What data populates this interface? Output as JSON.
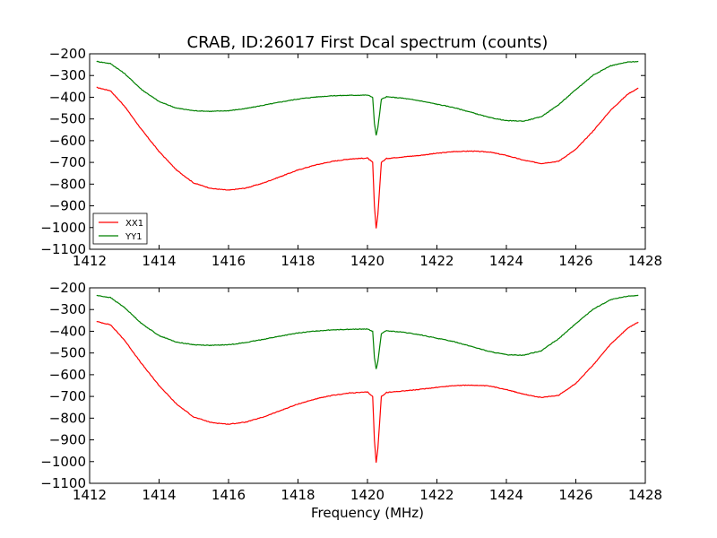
{
  "title": "CRAB, ID:26017 First Dcal spectrum (counts)",
  "xlabel": "Frequency (MHz)",
  "chart_data": [
    {
      "type": "line",
      "title": "CRAB, ID:26017 First Dcal spectrum (counts)",
      "xlabel": "",
      "ylabel": "",
      "xlim": [
        1412,
        1428
      ],
      "ylim": [
        -1100,
        -200
      ],
      "xticks": [
        1412,
        1414,
        1416,
        1418,
        1420,
        1422,
        1424,
        1426,
        1428
      ],
      "yticks": [
        -200,
        -300,
        -400,
        -500,
        -600,
        -700,
        -800,
        -900,
        -1000,
        -1100
      ],
      "grid": false,
      "legend": "lower-left",
      "series": [
        {
          "name": "XX1",
          "color": "#ff0000",
          "x": [
            1412.2,
            1412.6,
            1413.0,
            1413.5,
            1414.0,
            1414.5,
            1415.0,
            1415.5,
            1416.0,
            1416.5,
            1417.0,
            1417.5,
            1418.0,
            1418.5,
            1419.0,
            1419.5,
            1420.0,
            1420.15,
            1420.2,
            1420.25,
            1420.3,
            1420.4,
            1420.55,
            1421.0,
            1421.5,
            1422.0,
            1422.5,
            1423.0,
            1423.5,
            1424.0,
            1424.5,
            1425.0,
            1425.5,
            1426.0,
            1426.5,
            1427.0,
            1427.5,
            1427.8
          ],
          "y": [
            -355,
            -370,
            -440,
            -550,
            -650,
            -735,
            -795,
            -820,
            -828,
            -818,
            -795,
            -765,
            -735,
            -712,
            -695,
            -684,
            -680,
            -700,
            -900,
            -1005,
            -940,
            -700,
            -682,
            -675,
            -668,
            -658,
            -650,
            -648,
            -652,
            -668,
            -690,
            -705,
            -695,
            -640,
            -555,
            -460,
            -385,
            -358
          ]
        },
        {
          "name": "YY1",
          "color": "#008000",
          "x": [
            1412.2,
            1412.6,
            1413.0,
            1413.5,
            1414.0,
            1414.5,
            1415.0,
            1415.5,
            1416.0,
            1416.5,
            1417.0,
            1417.5,
            1418.0,
            1418.5,
            1419.0,
            1419.5,
            1420.0,
            1420.15,
            1420.2,
            1420.25,
            1420.3,
            1420.4,
            1420.55,
            1421.0,
            1421.5,
            1422.0,
            1422.5,
            1423.0,
            1423.5,
            1424.0,
            1424.5,
            1425.0,
            1425.5,
            1426.0,
            1426.5,
            1427.0,
            1427.5,
            1427.8
          ],
          "y": [
            -235,
            -245,
            -290,
            -365,
            -420,
            -450,
            -462,
            -465,
            -462,
            -452,
            -437,
            -422,
            -408,
            -399,
            -393,
            -391,
            -390,
            -400,
            -520,
            -575,
            -540,
            -410,
            -398,
            -404,
            -416,
            -432,
            -448,
            -470,
            -493,
            -508,
            -510,
            -490,
            -435,
            -365,
            -298,
            -255,
            -238,
            -235
          ]
        }
      ]
    },
    {
      "type": "line",
      "title": "",
      "xlabel": "Frequency (MHz)",
      "ylabel": "",
      "xlim": [
        1412,
        1428
      ],
      "ylim": [
        -1100,
        -200
      ],
      "xticks": [
        1412,
        1414,
        1416,
        1418,
        1420,
        1422,
        1424,
        1426,
        1428
      ],
      "yticks": [
        -200,
        -300,
        -400,
        -500,
        -600,
        -700,
        -800,
        -900,
        -1000,
        -1100
      ],
      "grid": false,
      "legend": "none",
      "series": [
        {
          "color": "#ff0000",
          "x": [
            1412.2,
            1412.6,
            1413.0,
            1413.5,
            1414.0,
            1414.5,
            1415.0,
            1415.5,
            1416.0,
            1416.5,
            1417.0,
            1417.5,
            1418.0,
            1418.5,
            1419.0,
            1419.5,
            1420.0,
            1420.15,
            1420.2,
            1420.25,
            1420.3,
            1420.4,
            1420.55,
            1421.0,
            1421.5,
            1422.0,
            1422.5,
            1423.0,
            1423.5,
            1424.0,
            1424.5,
            1425.0,
            1425.5,
            1426.0,
            1426.5,
            1427.0,
            1427.5,
            1427.8
          ],
          "y": [
            -355,
            -370,
            -440,
            -550,
            -650,
            -735,
            -795,
            -820,
            -828,
            -818,
            -795,
            -765,
            -735,
            -712,
            -695,
            -684,
            -680,
            -700,
            -900,
            -1005,
            -940,
            -700,
            -682,
            -675,
            -668,
            -658,
            -650,
            -648,
            -652,
            -668,
            -690,
            -705,
            -695,
            -640,
            -555,
            -460,
            -385,
            -358
          ]
        },
        {
          "color": "#008000",
          "x": [
            1412.2,
            1412.6,
            1413.0,
            1413.5,
            1414.0,
            1414.5,
            1415.0,
            1415.5,
            1416.0,
            1416.5,
            1417.0,
            1417.5,
            1418.0,
            1418.5,
            1419.0,
            1419.5,
            1420.0,
            1420.15,
            1420.2,
            1420.25,
            1420.3,
            1420.4,
            1420.55,
            1421.0,
            1421.5,
            1422.0,
            1422.5,
            1423.0,
            1423.5,
            1424.0,
            1424.5,
            1425.0,
            1425.5,
            1426.0,
            1426.5,
            1427.0,
            1427.5,
            1427.8
          ],
          "y": [
            -235,
            -245,
            -290,
            -365,
            -420,
            -450,
            -462,
            -465,
            -462,
            -452,
            -437,
            -422,
            -408,
            -399,
            -393,
            -391,
            -390,
            -400,
            -520,
            -575,
            -540,
            -410,
            -398,
            -404,
            -416,
            -432,
            -448,
            -470,
            -493,
            -508,
            -510,
            -490,
            -435,
            -365,
            -298,
            -255,
            -238,
            -235
          ]
        }
      ]
    }
  ]
}
